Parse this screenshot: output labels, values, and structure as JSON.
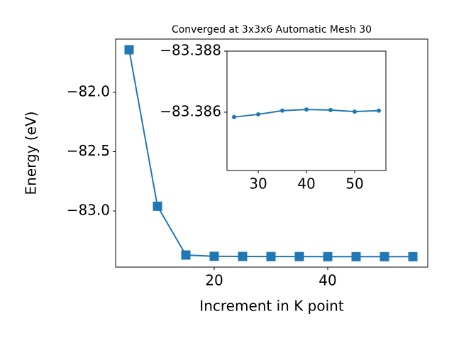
{
  "chart_data": [
    {
      "type": "line",
      "title": "Converged at 3x3x6 Automatic Mesh 30",
      "x_label": "Increment in K point",
      "y_label": "Energy (eV)",
      "x": [
        5,
        10,
        15,
        20,
        25,
        30,
        35,
        40,
        45,
        50,
        55
      ],
      "series": [
        {
          "color": "#1f77b4",
          "marker": "square",
          "values": [
            -81.641,
            -82.96,
            -83.371,
            -83.382,
            -83.383,
            -83.384,
            -83.384,
            -83.385,
            -83.385,
            -83.385,
            -83.385
          ]
        }
      ],
      "xlim": [
        2.625,
        57.625
      ],
      "xticks": [
        20,
        40
      ],
      "ylim": [
        -83.473,
        -81.551
      ],
      "yticks": [
        {
          "value": -83.0,
          "label": "−83.0"
        },
        {
          "value": -82.5,
          "label": "−82.5"
        },
        {
          "value": -82.0,
          "label": "−82.0"
        }
      ]
    },
    {
      "type": "line",
      "x": [
        25,
        30,
        35,
        40,
        45,
        50,
        55
      ],
      "series": [
        {
          "color": "#1f77b4",
          "marker": "circle",
          "values": [
            -83.38584,
            -83.38593,
            -83.38605,
            -83.38609,
            -83.38607,
            -83.38602,
            -83.38605
          ]
        }
      ],
      "xlim": [
        23.53,
        56.47
      ],
      "xticks": [
        30,
        40,
        50
      ],
      "ylim": [
        -83.38409,
        -83.388
      ],
      "yticks": [
        {
          "value": -83.388,
          "label": "−83.388"
        },
        {
          "value": -83.386,
          "label": "−83.386"
        }
      ]
    }
  ]
}
